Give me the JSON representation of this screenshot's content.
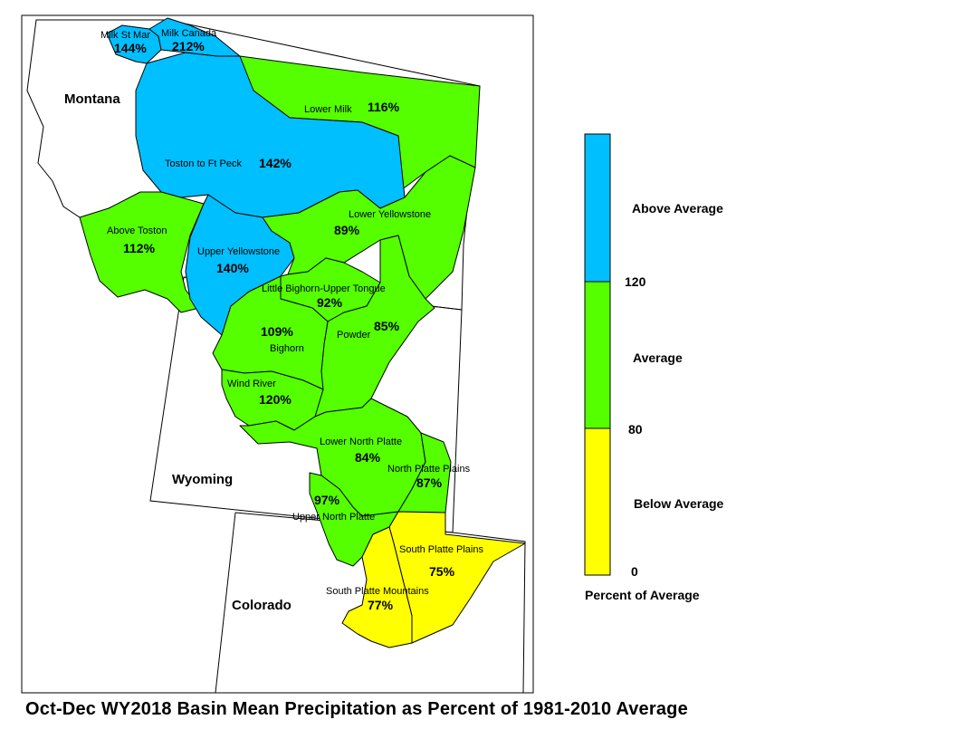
{
  "title": "Oct-Dec WY2018 Basin Mean Precipitation as Percent of 1981-2010 Average",
  "colors": {
    "above": "#00bfff",
    "average": "#55ff00",
    "below": "#ffff00",
    "outline": "#000000"
  },
  "states": {
    "montana": "Montana",
    "wyoming": "Wyoming",
    "colorado": "Colorado"
  },
  "legend": {
    "title": "Percent of Average",
    "classes": [
      {
        "label": "Above Average",
        "range": "above 120"
      },
      {
        "label": "Average",
        "range": "80 - 120"
      },
      {
        "label": "Below Average",
        "range": "0 - 80"
      }
    ],
    "breaks": [
      "120",
      "80",
      "0"
    ]
  },
  "basins": [
    {
      "name": "Milk St Mary",
      "shown_name": "Milk St Mar",
      "pct": "144%",
      "class": "above"
    },
    {
      "name": "Milk Canada",
      "shown_name": "Milk Canada",
      "pct": "212%",
      "class": "above"
    },
    {
      "name": "Lower Milk",
      "shown_name": "Lower Milk",
      "pct": "116%",
      "class": "average"
    },
    {
      "name": "Toston to Ft Peck",
      "shown_name": "Toston to Ft Peck",
      "pct": "142%",
      "class": "above"
    },
    {
      "name": "Above Toston",
      "shown_name": "Above Toston",
      "pct": "112%",
      "class": "average"
    },
    {
      "name": "Upper Yellowstone",
      "shown_name": "Upper Yellowstone",
      "pct": "140%",
      "class": "above"
    },
    {
      "name": "Lower Yellowstone",
      "shown_name": "Lower Yellowstone",
      "pct": "89%",
      "class": "average"
    },
    {
      "name": "Little Bighorn-Upper Tongue",
      "shown_name": "Little Bighorn-Upper Tongue",
      "pct": "92%",
      "class": "average"
    },
    {
      "name": "Bighorn",
      "shown_name": "Bighorn",
      "pct": "109%",
      "class": "average"
    },
    {
      "name": "Powder",
      "shown_name": "Powder",
      "pct": "85%",
      "class": "average"
    },
    {
      "name": "Wind River",
      "shown_name": "Wind River",
      "pct": "120%",
      "class": "average"
    },
    {
      "name": "Lower North Platte",
      "shown_name": "Lower North Platte",
      "pct": "84%",
      "class": "average"
    },
    {
      "name": "North Platte Plains",
      "shown_name": "North Platte Plains",
      "pct": "87%",
      "class": "average"
    },
    {
      "name": "Upper North Platte",
      "shown_name": "Upper North Platte",
      "pct": "97%",
      "class": "average"
    },
    {
      "name": "South Platte Plains",
      "shown_name": "South Platte Plains",
      "pct": "75%",
      "class": "below"
    },
    {
      "name": "South Platte Mountains",
      "shown_name": "South Platte Mountains",
      "pct": "77%",
      "class": "below"
    }
  ]
}
